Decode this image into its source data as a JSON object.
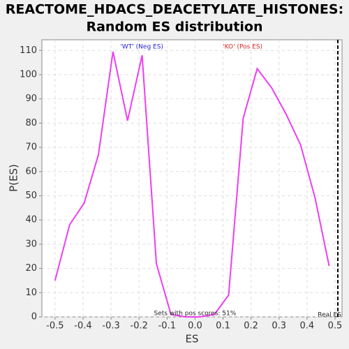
{
  "chart_data": {
    "type": "line",
    "title": [
      "REACTOME_HDACS_DEACETYLATE_HISTONES:",
      "Random ES distribution"
    ],
    "x_label": "ES",
    "y_label": "P(ES)",
    "x": [
      -0.5,
      -0.448,
      -0.396,
      -0.345,
      -0.293,
      -0.241,
      -0.189,
      -0.138,
      -0.086,
      -0.034,
      0.017,
      0.069,
      0.12,
      0.172,
      0.222,
      0.274,
      0.324,
      0.377,
      0.429,
      0.479
    ],
    "values": [
      15,
      38,
      47,
      67,
      109.5,
      81,
      108,
      22,
      1,
      0,
      0,
      1,
      9,
      82,
      102.5,
      94.5,
      84,
      71,
      49,
      21
    ],
    "color": "#ee3ef0",
    "xlim": [
      -0.547,
      0.525
    ],
    "ylim": [
      0,
      114.4
    ],
    "xticks": [
      -0.5,
      -0.4,
      -0.3,
      -0.2,
      -0.1,
      {
        "value": 0,
        "label": "0.0"
      },
      0.1,
      0.2,
      0.3,
      0.4,
      0.5
    ],
    "yticks": [
      0,
      10,
      20,
      30,
      40,
      50,
      60,
      70,
      80,
      90,
      100,
      110
    ],
    "grid": true,
    "real_es": 0.51,
    "real_es_label": "Real ES",
    "annotations": [
      {
        "text": "'WT' (Neg ES)",
        "color": "#2222dd",
        "x": -0.19,
        "y": 111.5
      },
      {
        "text": "'KO' (Pos ES)",
        "color": "#dd2222",
        "x": 0.17,
        "y": 111.5
      },
      {
        "text": "Sets with pos scores: 51%",
        "color": "#222222",
        "x": 0.0,
        "y": 1.4
      }
    ]
  }
}
